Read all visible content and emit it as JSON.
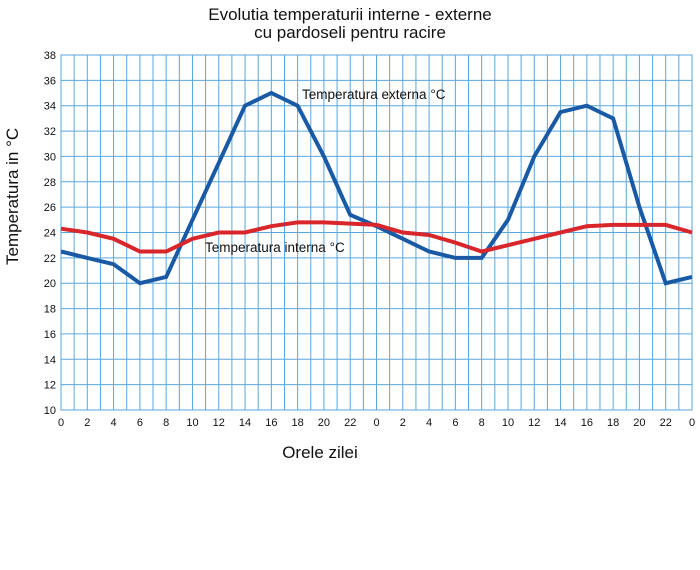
{
  "chart_data": {
    "type": "line",
    "title_line1": "Evolutia temperaturii interne - externe",
    "title_line2": "cu pardoseli pentru racire",
    "xlabel": "Orele zilei",
    "ylabel": "Temperatura in   °C",
    "ylim": [
      10,
      38
    ],
    "yticks": [
      10,
      12,
      14,
      16,
      18,
      20,
      22,
      24,
      26,
      28,
      30,
      32,
      34,
      36,
      38
    ],
    "xtick_labels": [
      "0",
      "2",
      "4",
      "6",
      "8",
      "10",
      "12",
      "14",
      "16",
      "18",
      "20",
      "22",
      "0",
      "2",
      "4",
      "6",
      "8",
      "10",
      "12",
      "14",
      "16",
      "18",
      "20",
      "22",
      "0"
    ],
    "grid": true,
    "colors": {
      "externa": "#1a5aa5",
      "interna": "#d9262a",
      "grid": "#5aa6df"
    },
    "series": [
      {
        "name": "Temperatura externa    °C",
        "color": "#1a5aa5",
        "values": [
          22.5,
          22,
          21.5,
          20,
          20.5,
          25,
          29.5,
          34,
          35,
          34,
          30,
          25.4,
          24.5,
          23.5,
          22.5,
          22,
          22,
          25,
          30,
          33.5,
          34,
          33,
          26,
          20,
          20.5
        ]
      },
      {
        "name": "Temperatura interna    °C",
        "color": "#d9262a",
        "values": [
          24.3,
          24,
          23.5,
          22.5,
          22.5,
          23.5,
          24,
          24,
          24.5,
          24.8,
          24.8,
          24.7,
          24.6,
          24,
          23.8,
          23.2,
          22.5,
          23,
          23.5,
          24,
          24.5,
          24.6,
          24.6,
          24.6,
          24
        ]
      }
    ]
  }
}
